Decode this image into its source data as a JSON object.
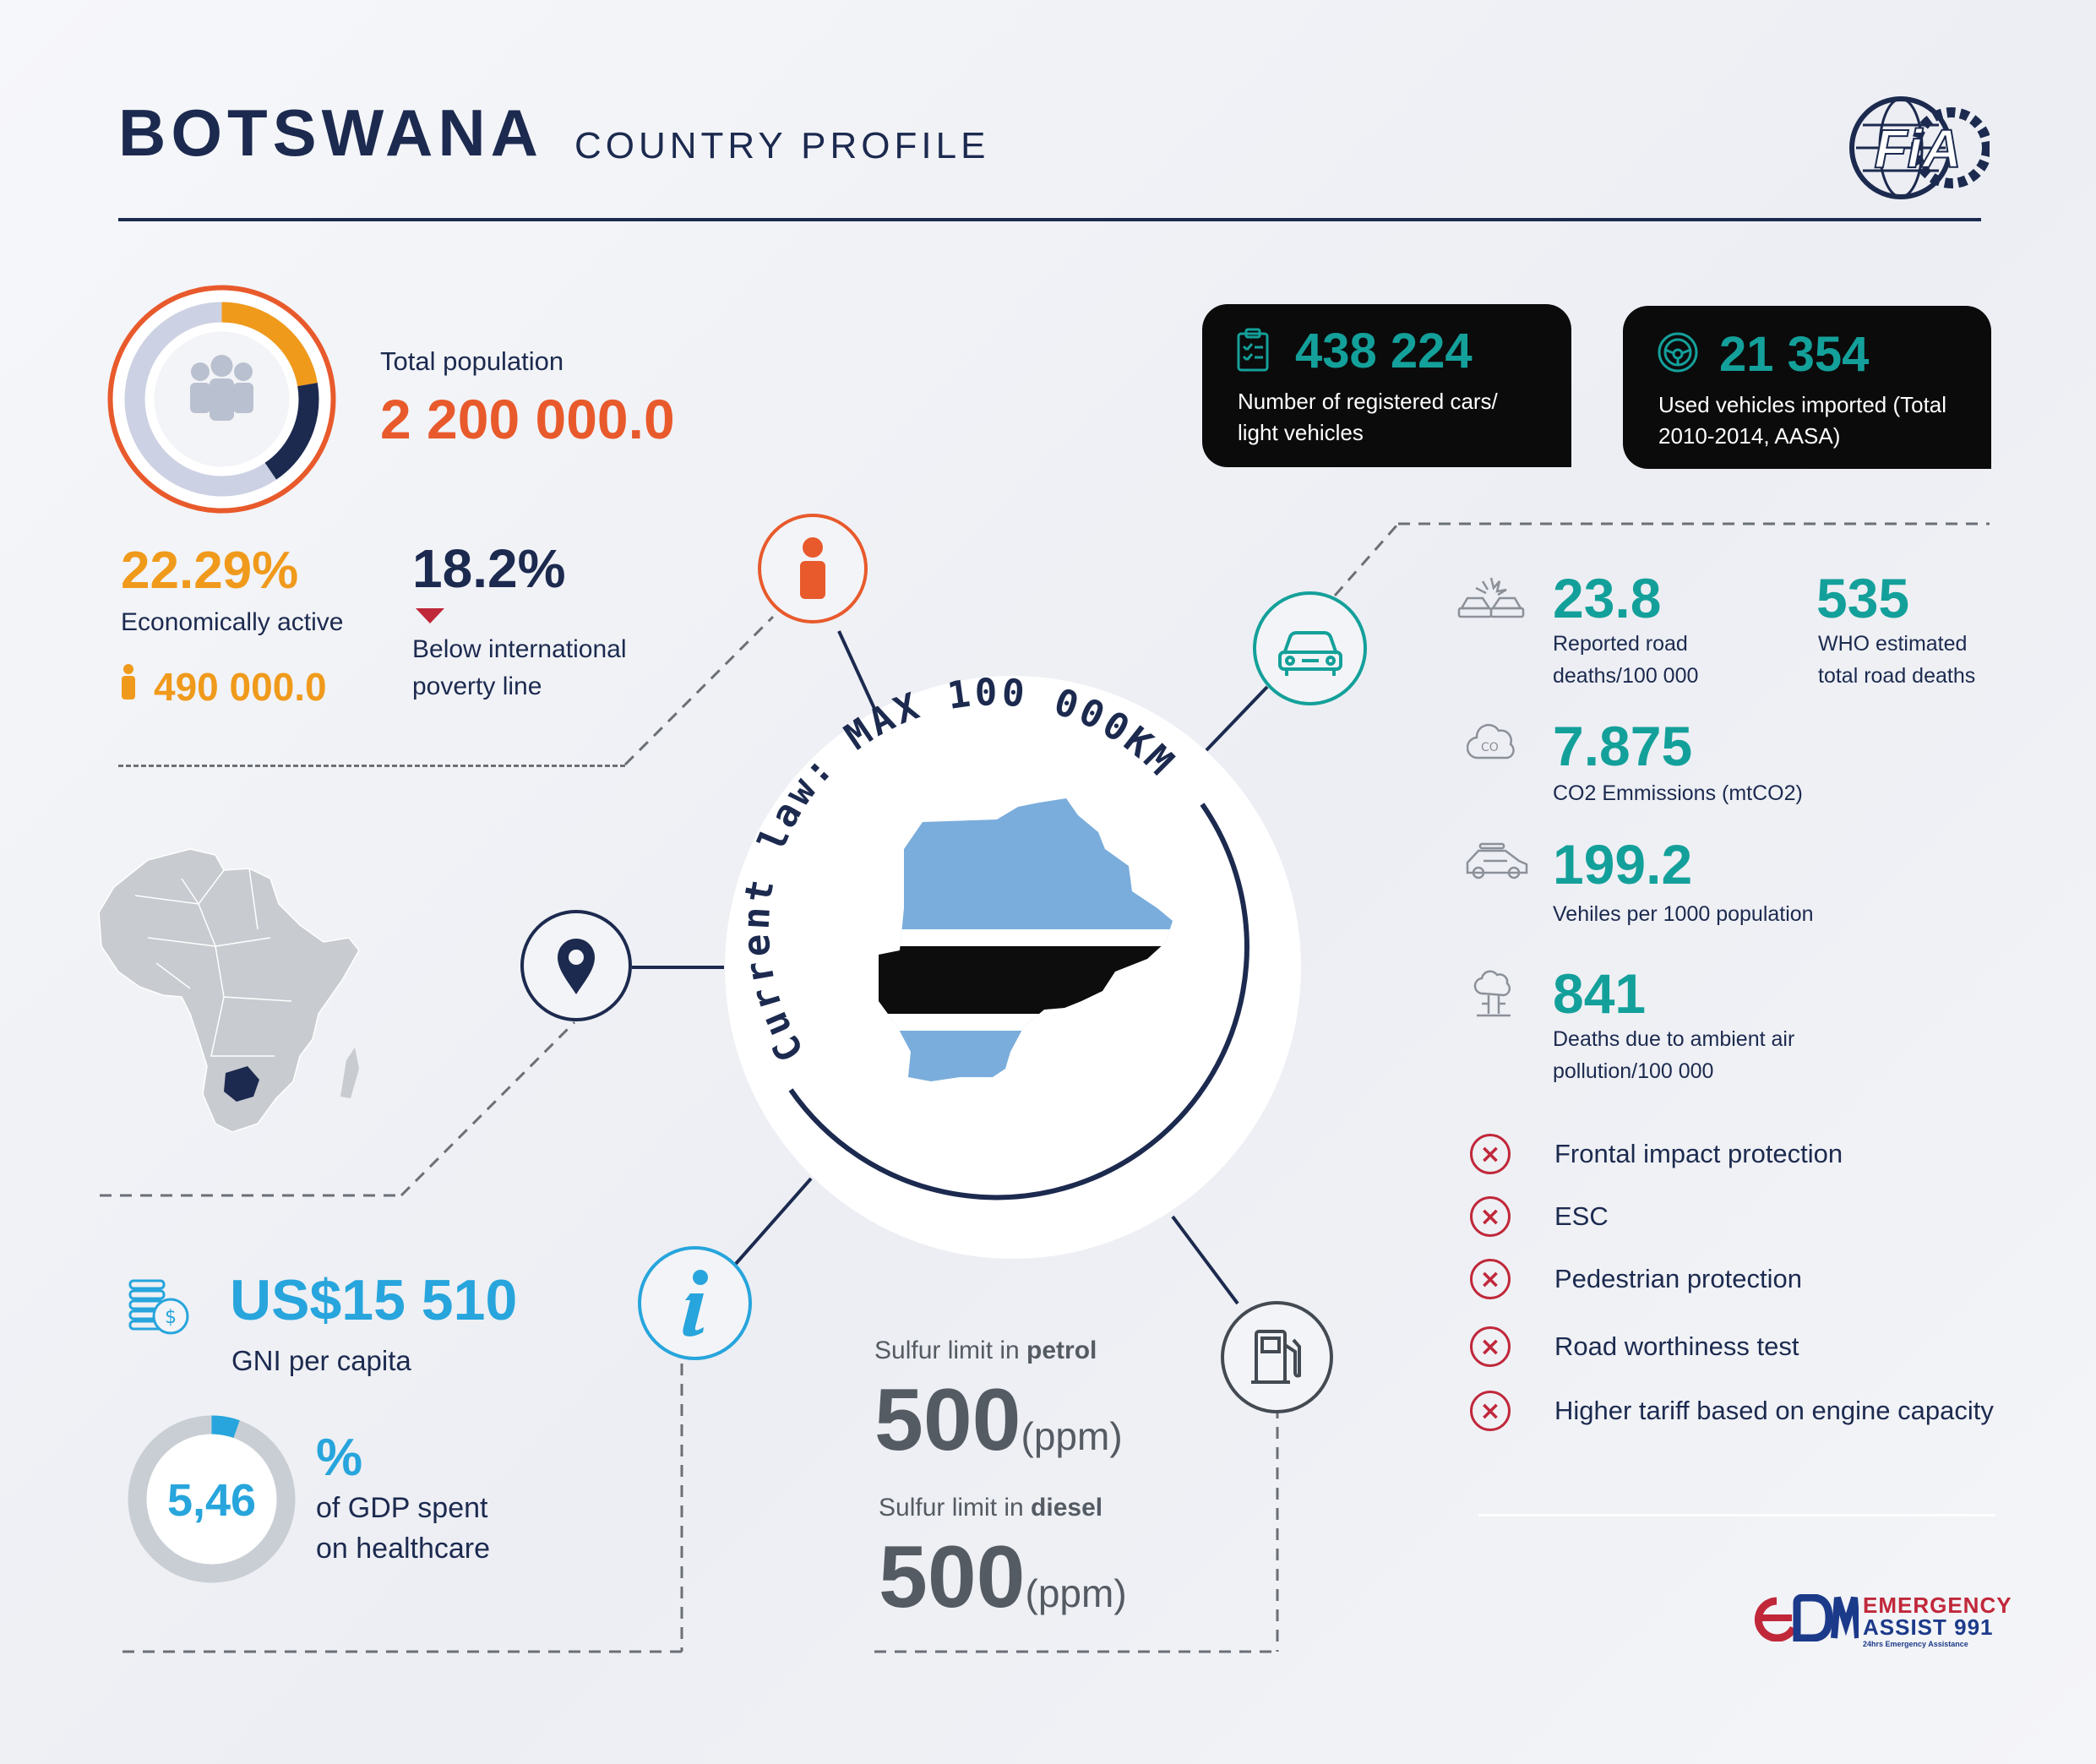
{
  "header": {
    "country": "BOTSWANA",
    "subtitle": "COUNTRY PROFILE",
    "logo_text": "FiA"
  },
  "population": {
    "label": "Total population",
    "value": "2 200 000.0",
    "economically_active_pct": "22.29%",
    "economically_active_label": "Economically active",
    "economically_active_count": "490 000.0",
    "poverty_pct": "18.2%",
    "poverty_label_line1": "Below international",
    "poverty_label_line2": "poverty line"
  },
  "cards": [
    {
      "value": "438 224",
      "label_line1": "Number of registered cars/",
      "label_line2": "light vehicles",
      "icon": "clipboard-icon"
    },
    {
      "value": "21 354",
      "label_line1": "Used vehicles imported (Total",
      "label_line2": "2010-2014, AASA)",
      "icon": "steering-wheel-icon"
    }
  ],
  "center": {
    "arc_text": "Current law: MAX 100 000KM"
  },
  "stats": {
    "road_deaths_value": "23.8",
    "road_deaths_label_line1": "Reported road",
    "road_deaths_label_line2": "deaths/100 000",
    "who_deaths_value": "535",
    "who_deaths_label_line1": "WHO estimated",
    "who_deaths_label_line2": "total road deaths",
    "co2_value": "7.875",
    "co2_label": "CO2 Emmissions (mtCO2)",
    "vehicles_value": "199.2",
    "vehicles_label": "Vehiles per 1000 population",
    "air_value": "841",
    "air_label_line1": "Deaths due to ambient air",
    "air_label_line2": "pollution/100 000"
  },
  "safety_checks": [
    {
      "label": "Frontal impact protection",
      "status": "no"
    },
    {
      "label": "ESC",
      "status": "no"
    },
    {
      "label": "Pedestrian protection",
      "status": "no"
    },
    {
      "label": "Road worthiness test",
      "status": "no"
    },
    {
      "label": "Higher tariff based on engine capacity",
      "status": "no"
    }
  ],
  "economy": {
    "gni_value": "US$15 510",
    "gni_label": "GNI per capita",
    "health_value": "5,46",
    "health_fraction": 0.0546,
    "health_unit": "%",
    "health_label_line1": "of GDP spent",
    "health_label_line2": "on healthcare"
  },
  "fuel": {
    "petrol_label_prefix": "Sulfur limit in ",
    "petrol_label_bold": "petrol",
    "petrol_value": "500",
    "petrol_unit": "(ppm)",
    "diesel_label_prefix": "Sulfur limit in ",
    "diesel_label_bold": "diesel",
    "diesel_value": "500",
    "diesel_unit": "(ppm)"
  },
  "sponsor": {
    "line1": "EMERGENCY",
    "line2": "ASSIST 991",
    "tagline": "24hrs Emergency Assistance"
  },
  "colors": {
    "navy": "#1c2a4f",
    "orange": "#e85a2c",
    "amber": "#f09a1c",
    "teal": "#14a09a",
    "blue": "#27a5dc",
    "red": "#c0283a",
    "flag_blue": "#7aaddc"
  }
}
